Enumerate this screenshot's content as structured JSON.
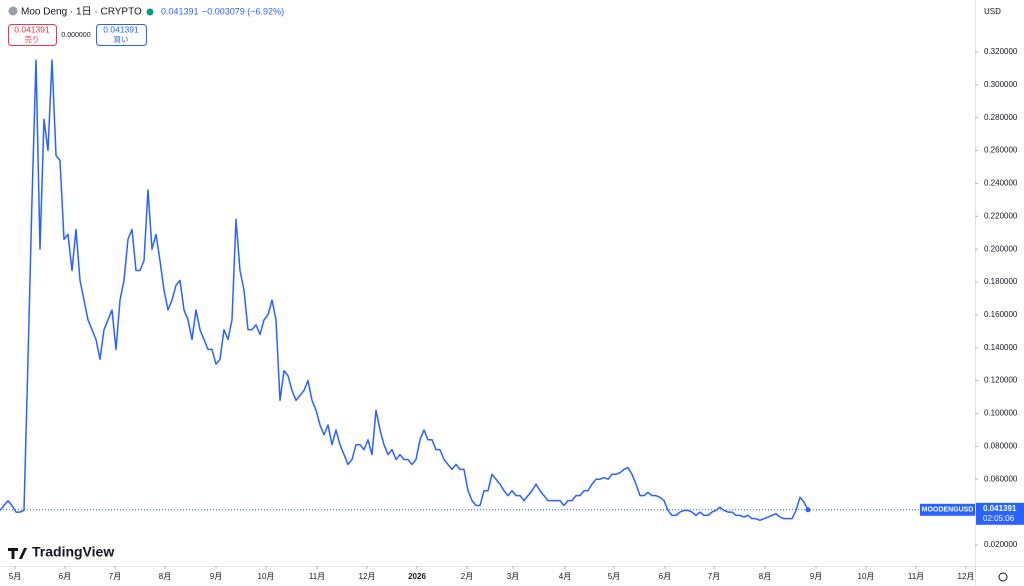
{
  "header": {
    "title": "Moo Deng · 1日 · CRYPTO",
    "price": "0.041391",
    "change": "−0.003079 (−6.92%)",
    "sell_price": "0.041391",
    "sell_label": "売り",
    "spread": "0.000000",
    "buy_price": "0.041391",
    "buy_label": "買い",
    "currency": "USD",
    "last_price": "0.041391",
    "countdown": "02:05:06",
    "brand": "TradingView"
  },
  "chart_data": {
    "type": "line",
    "title": "Moo Deng · 1日 · CRYPTO",
    "series": [
      {
        "name": "MOODENGUSD",
        "color": "#2962ff",
        "values": [
          0.041,
          0.044,
          0.047,
          0.044,
          0.04,
          0.04,
          0.041,
          0.133,
          0.23,
          0.315,
          0.2,
          0.279,
          0.26,
          0.315,
          0.257,
          0.254,
          0.206,
          0.209,
          0.187,
          0.212,
          0.181,
          0.169,
          0.157,
          0.151,
          0.145,
          0.133,
          0.151,
          0.157,
          0.163,
          0.139,
          0.169,
          0.181,
          0.206,
          0.212,
          0.187,
          0.187,
          0.193,
          0.236,
          0.2,
          0.209,
          0.193,
          0.175,
          0.163,
          0.169,
          0.178,
          0.181,
          0.163,
          0.157,
          0.145,
          0.163,
          0.151,
          0.145,
          0.139,
          0.139,
          0.13,
          0.133,
          0.151,
          0.145,
          0.157,
          0.218,
          0.187,
          0.175,
          0.151,
          0.151,
          0.154,
          0.148,
          0.157,
          0.16,
          0.169,
          0.157,
          0.108,
          0.126,
          0.123,
          0.114,
          0.108,
          0.111,
          0.114,
          0.12,
          0.108,
          0.102,
          0.093,
          0.087,
          0.093,
          0.081,
          0.09,
          0.081,
          0.075,
          0.069,
          0.072,
          0.081,
          0.081,
          0.078,
          0.084,
          0.075,
          0.102,
          0.09,
          0.081,
          0.075,
          0.078,
          0.072,
          0.075,
          0.072,
          0.072,
          0.069,
          0.072,
          0.084,
          0.09,
          0.084,
          0.084,
          0.078,
          0.078,
          0.072,
          0.069,
          0.066,
          0.069,
          0.066,
          0.066,
          0.053,
          0.047,
          0.044,
          0.044,
          0.053,
          0.053,
          0.063,
          0.06,
          0.057,
          0.053,
          0.05,
          0.053,
          0.05,
          0.05,
          0.047,
          0.05,
          0.053,
          0.057,
          0.053,
          0.05,
          0.047,
          0.047,
          0.047,
          0.047,
          0.044,
          0.047,
          0.047,
          0.05,
          0.05,
          0.053,
          0.053,
          0.057,
          0.06,
          0.06,
          0.061,
          0.06,
          0.063,
          0.063,
          0.064,
          0.066,
          0.067,
          0.063,
          0.057,
          0.05,
          0.05,
          0.052,
          0.05,
          0.05,
          0.049,
          0.047,
          0.041,
          0.038,
          0.038,
          0.04,
          0.041,
          0.041,
          0.04,
          0.038,
          0.04,
          0.038,
          0.038,
          0.04,
          0.041,
          0.043,
          0.041,
          0.04,
          0.04,
          0.038,
          0.038,
          0.037,
          0.038,
          0.036,
          0.036,
          0.035,
          0.036,
          0.037,
          0.038,
          0.039,
          0.037,
          0.036,
          0.036,
          0.036,
          0.041,
          0.049,
          0.046,
          0.041391
        ]
      }
    ],
    "xlim": [
      0,
      243.75
    ],
    "xticks": [
      {
        "value": 3.75,
        "label": "5月"
      },
      {
        "value": 16.25,
        "label": "6月"
      },
      {
        "value": 28.75,
        "label": "7月"
      },
      {
        "value": 41.25,
        "label": "8月"
      },
      {
        "value": 54,
        "label": "9月"
      },
      {
        "value": 66.5,
        "label": "10月"
      },
      {
        "value": 79.25,
        "label": "11月"
      },
      {
        "value": 91.75,
        "label": "12月"
      },
      {
        "value": 104.25,
        "label": "2026"
      },
      {
        "value": 116.75,
        "label": "2月"
      },
      {
        "value": 128.25,
        "label": "3月"
      },
      {
        "value": 141.25,
        "label": "4月"
      },
      {
        "value": 153.5,
        "label": "5月"
      },
      {
        "value": 166.25,
        "label": "6月"
      },
      {
        "value": 178.5,
        "label": "7月"
      },
      {
        "value": 191.25,
        "label": "8月"
      },
      {
        "value": 204,
        "label": "9月"
      },
      {
        "value": 216.5,
        "label": "10月"
      },
      {
        "value": 229,
        "label": "11月"
      },
      {
        "value": 241.5,
        "label": "12月"
      }
    ],
    "ylim": [
      0.0072,
      0.3516
    ],
    "yticks": [
      {
        "value": 0.02,
        "label": "0.020000"
      },
      {
        "value": 0.04,
        "label": "0.040000"
      },
      {
        "value": 0.06,
        "label": "0.060000"
      },
      {
        "value": 0.08,
        "label": "0.080000"
      },
      {
        "value": 0.1,
        "label": "0.100000"
      },
      {
        "value": 0.12,
        "label": "0.120000"
      },
      {
        "value": 0.14,
        "label": "0.140000"
      },
      {
        "value": 0.16,
        "label": "0.160000"
      },
      {
        "value": 0.18,
        "label": "0.180000"
      },
      {
        "value": 0.2,
        "label": "0.200000"
      },
      {
        "value": 0.22,
        "label": "0.220000"
      },
      {
        "value": 0.24,
        "label": "0.240000"
      },
      {
        "value": 0.26,
        "label": "0.260000"
      },
      {
        "value": 0.28,
        "label": "0.280000"
      },
      {
        "value": 0.3,
        "label": "0.300000"
      },
      {
        "value": 0.32,
        "label": "0.320000"
      }
    ],
    "grid": false
  }
}
